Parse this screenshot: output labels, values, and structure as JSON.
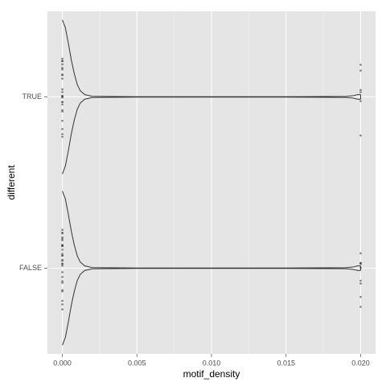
{
  "chart_data": {
    "type": "violin",
    "orientation": "horizontal",
    "x_label": "motif_density",
    "y_label": "different",
    "xlim": [
      -0.001,
      0.021
    ],
    "xticks": [
      {
        "value": 0,
        "label": "0.000"
      },
      {
        "value": 0.005,
        "label": "0.005"
      },
      {
        "value": 0.01,
        "label": "0.010"
      },
      {
        "value": 0.015,
        "label": "0.015"
      },
      {
        "value": 0.02,
        "label": "0.020"
      }
    ],
    "x_minor_ticks": [
      0.0025,
      0.0075,
      0.0125,
      0.0175
    ],
    "grid": true,
    "categories": [
      "TRUE",
      "FALSE"
    ],
    "density_x": [
      0,
      0.0002,
      0.0004,
      0.0006,
      0.0008,
      0.001,
      0.0012,
      0.0015,
      0.002,
      0.005,
      0.01,
      0.015,
      0.019,
      0.0195,
      0.0198,
      0.02
    ],
    "series": [
      {
        "width": [
          1,
          0.9,
          0.7,
          0.48,
          0.3,
          0.16,
          0.08,
          0.03,
          0.008,
          0.003,
          0.003,
          0.003,
          0.006,
          0.015,
          0.03,
          0.03
        ],
        "points": [
          0,
          0,
          0,
          0,
          0,
          0,
          0,
          0,
          0,
          0,
          0,
          0,
          0,
          0,
          0,
          0,
          0,
          0,
          0,
          0,
          0,
          0,
          0,
          0,
          0.02,
          0.02,
          0.02,
          0.02,
          0.02,
          0.02
        ]
      },
      {
        "width": [
          1,
          0.9,
          0.7,
          0.48,
          0.3,
          0.16,
          0.08,
          0.03,
          0.008,
          0.003,
          0.003,
          0.003,
          0.006,
          0.015,
          0.03,
          0.03
        ],
        "points": [
          0,
          0,
          0,
          0,
          0,
          0,
          0,
          0,
          0,
          0,
          0,
          0,
          0,
          0,
          0,
          0,
          0,
          0,
          0,
          0,
          0,
          0,
          0,
          0,
          0,
          0,
          0,
          0,
          0.02,
          0.02,
          0.02,
          0.02,
          0.02,
          0.02,
          0.02,
          0.02,
          0.02
        ]
      }
    ]
  }
}
